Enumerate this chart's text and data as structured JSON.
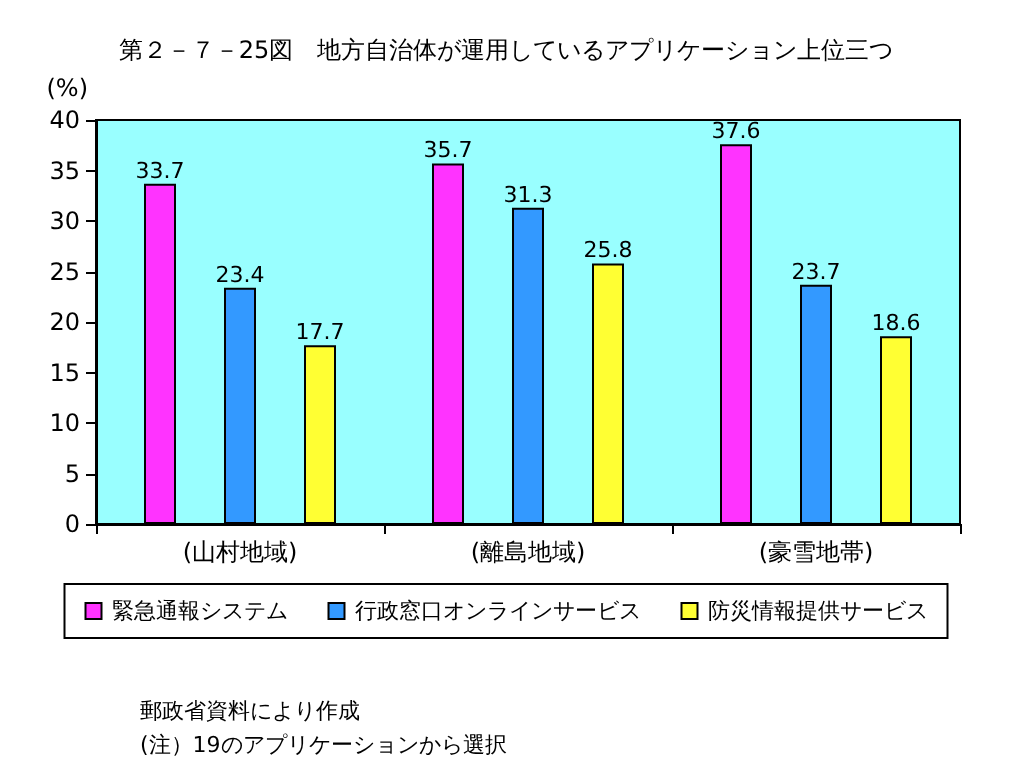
{
  "chart_data": {
    "type": "bar",
    "title": "第２－７－25図　地方自治体が運用しているアプリケーション上位三つ",
    "ylabel": "(%)",
    "categories": [
      "(山村地域)",
      "(離島地域)",
      "(豪雪地帯)"
    ],
    "series": [
      {
        "name": "緊急通報システム",
        "color": "#ff33ff",
        "values": [
          33.7,
          35.7,
          37.6
        ]
      },
      {
        "name": "行政窓口オンラインサービス",
        "color": "#3399ff",
        "values": [
          23.4,
          31.3,
          23.7
        ]
      },
      {
        "name": "防災情報提供サービス",
        "color": "#ffff33",
        "values": [
          17.7,
          25.8,
          18.6
        ]
      }
    ],
    "ylim": [
      0,
      40
    ],
    "yticks": [
      0,
      5,
      10,
      15,
      20,
      25,
      30,
      35,
      40
    ],
    "grid": false,
    "legend": "bottom",
    "data_labels": true,
    "annotations": [
      "郵政省資料により作成",
      "(注）19のアプリケーションから選択"
    ]
  }
}
